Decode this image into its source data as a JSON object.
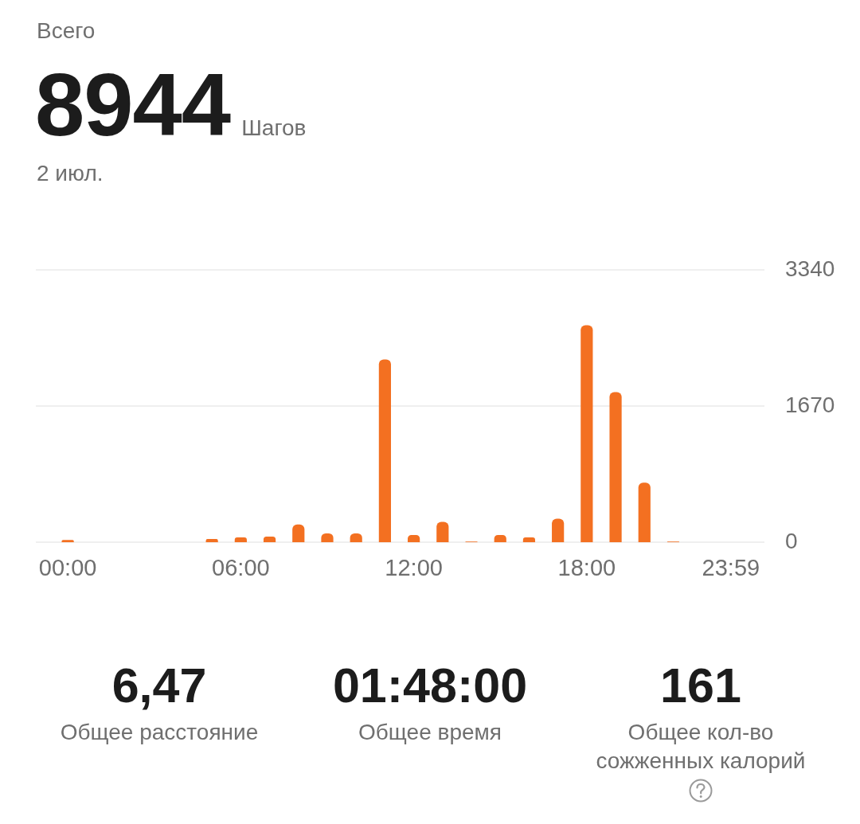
{
  "chart_data": {
    "type": "bar",
    "title": "Всего",
    "annotations": [
      "8944",
      "Шагов",
      "2 июл.",
      "6,47",
      "Общее расстояние",
      "01:48:00",
      "Общее время",
      "161",
      "Общее кол-во сожженных калорий"
    ],
    "categories": [
      "00:00",
      null,
      null,
      null,
      null,
      null,
      "06:00",
      null,
      null,
      null,
      null,
      null,
      "12:00",
      null,
      null,
      null,
      null,
      null,
      "18:00",
      null,
      null,
      null,
      null,
      "23:59"
    ],
    "values": [
      30,
      0,
      0,
      0,
      0,
      40,
      60,
      70,
      220,
      110,
      110,
      2240,
      90,
      250,
      10,
      90,
      60,
      290,
      2660,
      1840,
      730,
      10,
      0,
      0
    ],
    "color": "#f37021",
    "ylim": [
      0,
      3340
    ],
    "yticks": [
      0,
      1670,
      3340
    ],
    "grid": "y"
  }
}
